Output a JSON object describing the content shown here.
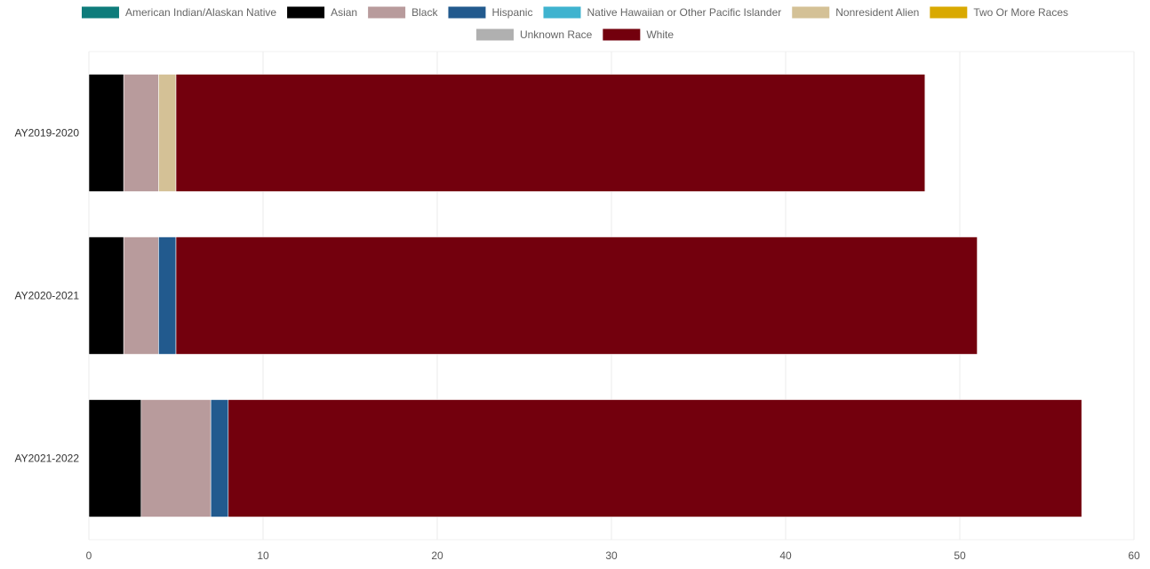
{
  "chart_data": {
    "type": "bar",
    "orientation": "horizontal",
    "stacked": true,
    "title": "",
    "xlabel": "",
    "ylabel": "",
    "xlim": [
      0,
      60
    ],
    "x_ticks": [
      0,
      10,
      20,
      30,
      40,
      50,
      60
    ],
    "grid": "vertical",
    "legend_position": "top",
    "categories": [
      "AY2019-2020",
      "AY2020-2021",
      "AY2021-2022"
    ],
    "series": [
      {
        "name": "American Indian/Alaskan Native",
        "color": "#0e7c7b",
        "values": [
          0,
          0,
          0
        ]
      },
      {
        "name": "Asian",
        "color": "#000000",
        "values": [
          2,
          2,
          3
        ]
      },
      {
        "name": "Black",
        "color": "#b89b9c",
        "values": [
          2,
          2,
          4
        ]
      },
      {
        "name": "Hispanic",
        "color": "#225a8e",
        "values": [
          0,
          1,
          1
        ]
      },
      {
        "name": "Native Hawaiian or Other Pacific Islander",
        "color": "#3fb3cf",
        "values": [
          0,
          0,
          0
        ]
      },
      {
        "name": "Nonresident Alien",
        "color": "#d4c196",
        "values": [
          1,
          0,
          0
        ]
      },
      {
        "name": "Two Or More Races",
        "color": "#d9a900",
        "values": [
          0,
          0,
          0
        ]
      },
      {
        "name": "Unknown Race",
        "color": "#b0b0b0",
        "values": [
          0,
          0,
          0
        ]
      },
      {
        "name": "White",
        "color": "#73000d",
        "values": [
          43,
          46,
          49
        ]
      }
    ]
  }
}
